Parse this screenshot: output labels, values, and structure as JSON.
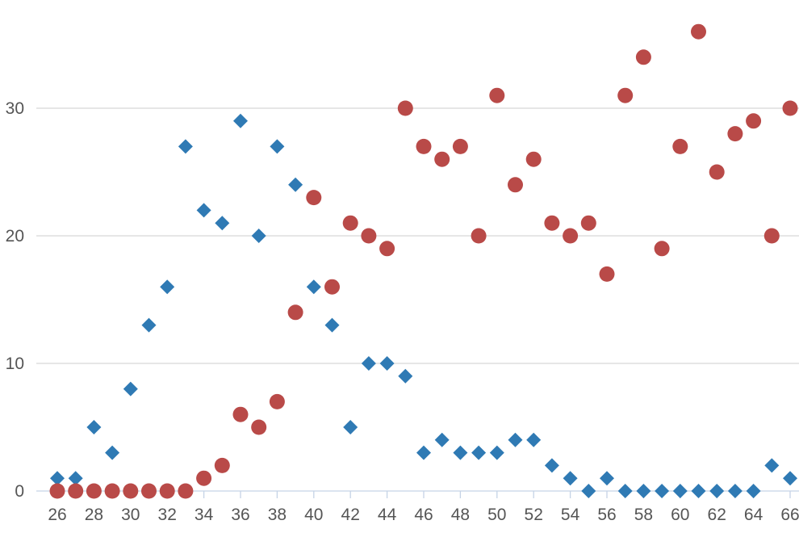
{
  "chart_data": {
    "type": "scatter",
    "title": "",
    "xlabel": "",
    "ylabel": "",
    "xlim": [
      25.5,
      66
    ],
    "ylim": [
      0,
      38.5
    ],
    "x_ticks": [
      26,
      28,
      30,
      32,
      34,
      36,
      38,
      40,
      42,
      44,
      46,
      48,
      50,
      52,
      54,
      56,
      58,
      60,
      62,
      64,
      66
    ],
    "y_ticks": [
      0,
      10,
      20,
      30
    ],
    "grid": "horizontal",
    "legend": "none",
    "series": [
      {
        "marker": "diamond",
        "color": "#2f7ab4",
        "points": [
          [
            26,
            1
          ],
          [
            27,
            1
          ],
          [
            28,
            5
          ],
          [
            29,
            3
          ],
          [
            30,
            8
          ],
          [
            31,
            13
          ],
          [
            32,
            16
          ],
          [
            33,
            27
          ],
          [
            34,
            22
          ],
          [
            35,
            21
          ],
          [
            36,
            29
          ],
          [
            37,
            20
          ],
          [
            38,
            27
          ],
          [
            39,
            24
          ],
          [
            40,
            16
          ],
          [
            41,
            13
          ],
          [
            42,
            5
          ],
          [
            43,
            10
          ],
          [
            44,
            10
          ],
          [
            45,
            9
          ],
          [
            46,
            3
          ],
          [
            47,
            4
          ],
          [
            48,
            3
          ],
          [
            49,
            3
          ],
          [
            50,
            3
          ],
          [
            51,
            4
          ],
          [
            52,
            4
          ],
          [
            53,
            2
          ],
          [
            54,
            1
          ],
          [
            55,
            0
          ],
          [
            56,
            1
          ],
          [
            57,
            0
          ],
          [
            58,
            0
          ],
          [
            59,
            0
          ],
          [
            60,
            0
          ],
          [
            61,
            0
          ],
          [
            62,
            0
          ],
          [
            63,
            0
          ],
          [
            64,
            0
          ],
          [
            65,
            2
          ],
          [
            66,
            1
          ]
        ]
      },
      {
        "marker": "circle",
        "color": "#b94a48",
        "points": [
          [
            26,
            0
          ],
          [
            27,
            0
          ],
          [
            28,
            0
          ],
          [
            29,
            0
          ],
          [
            30,
            0
          ],
          [
            31,
            0
          ],
          [
            32,
            0
          ],
          [
            33,
            0
          ],
          [
            34,
            1
          ],
          [
            35,
            2
          ],
          [
            36,
            6
          ],
          [
            37,
            5
          ],
          [
            38,
            7
          ],
          [
            39,
            14
          ],
          [
            40,
            23
          ],
          [
            41,
            16
          ],
          [
            42,
            21
          ],
          [
            43,
            20
          ],
          [
            44,
            19
          ],
          [
            45,
            30
          ],
          [
            46,
            27
          ],
          [
            47,
            26
          ],
          [
            48,
            27
          ],
          [
            49,
            20
          ],
          [
            50,
            31
          ],
          [
            51,
            24
          ],
          [
            52,
            26
          ],
          [
            53,
            21
          ],
          [
            54,
            20
          ],
          [
            55,
            21
          ],
          [
            56,
            17
          ],
          [
            57,
            31
          ],
          [
            58,
            34
          ],
          [
            59,
            19
          ],
          [
            60,
            27
          ],
          [
            61,
            36
          ],
          [
            62,
            25
          ],
          [
            63,
            28
          ],
          [
            64,
            29
          ],
          [
            65,
            20
          ],
          [
            66,
            30
          ]
        ]
      }
    ]
  }
}
